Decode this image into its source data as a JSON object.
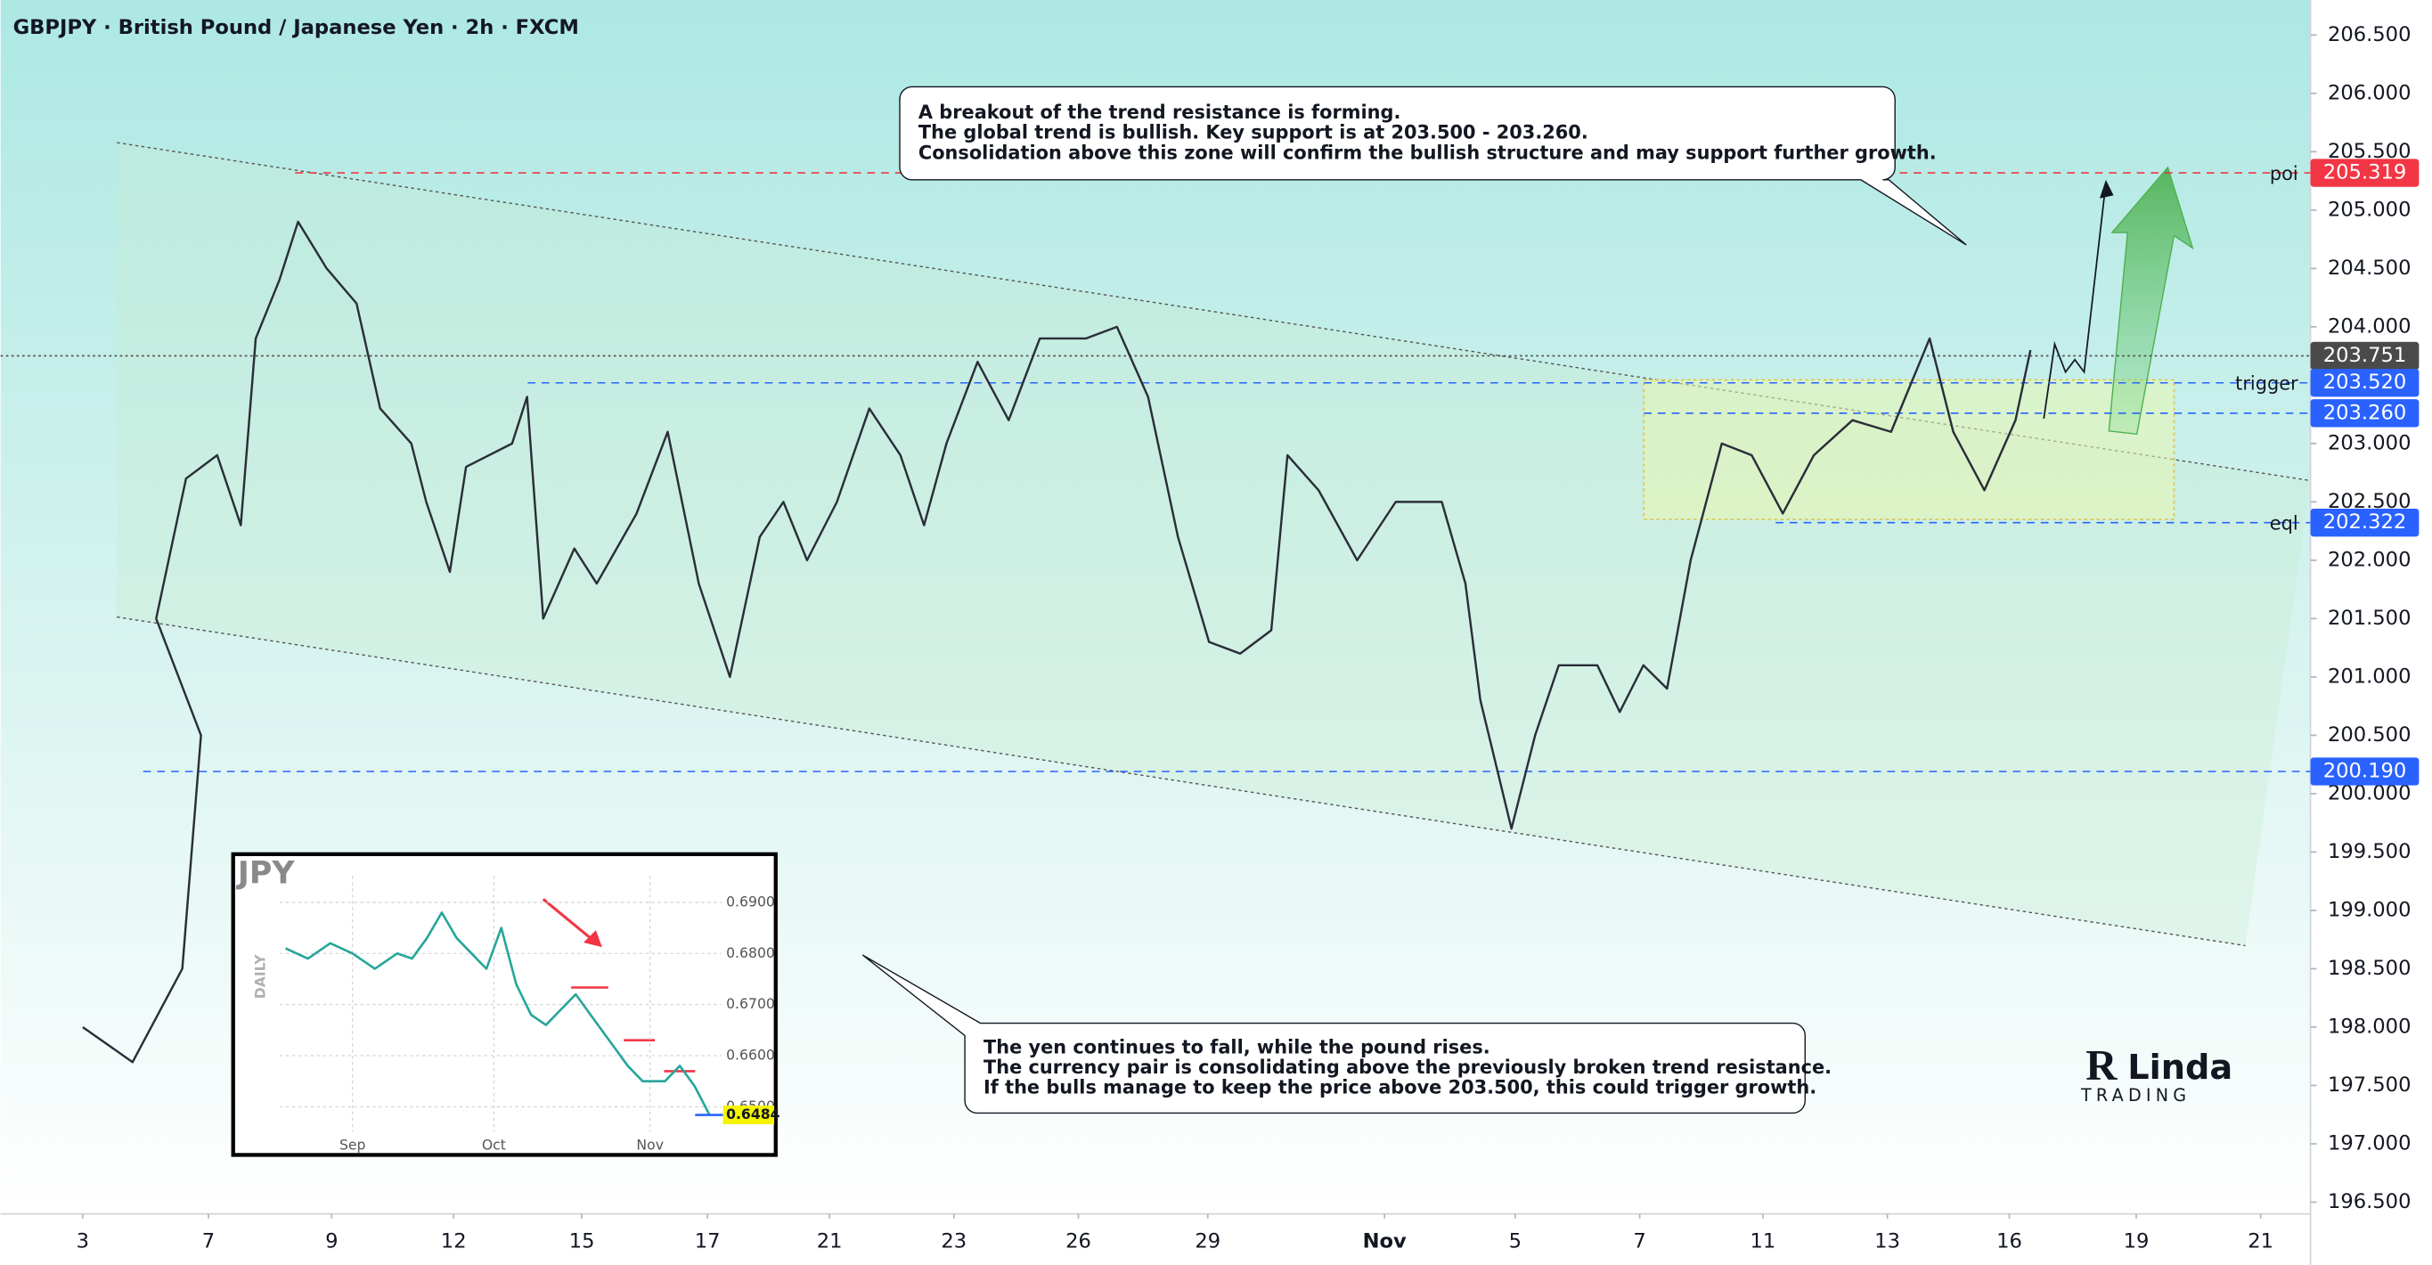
{
  "chart_data": {
    "type": "line",
    "title": "GBPJPY · British Pound / Japanese Yen · 2h · FXCM",
    "color": "#2a2e39",
    "x": [
      0,
      0.4,
      0.8,
      0.95,
      0.59,
      0.83,
      1.08,
      1.27,
      1.39,
      1.58,
      1.73,
      1.96,
      2.2,
      2.39,
      2.64,
      2.76,
      2.95,
      3.08,
      3.45,
      3.57,
      3.7,
      3.95,
      4.13,
      4.45,
      4.7,
      4.95,
      5.2,
      5.44,
      5.63,
      5.82,
      6.06,
      6.32,
      6.57,
      6.76,
      6.94,
      7.19,
      7.44,
      7.69,
      8.06,
      8.31,
      8.56,
      8.8,
      9.05,
      9.3,
      9.55,
      9.68,
      9.93,
      10.24,
      10.55,
      10.92,
      11.11,
      11.23,
      11.48,
      11.67,
      11.86,
      12.17,
      12.35,
      12.54,
      12.73,
      12.92,
      13.17,
      13.41,
      13.66,
      13.91,
      14.22,
      14.53,
      14.84,
      15.03,
      15.28,
      15.53,
      15.65
    ],
    "values": [
      198.0,
      197.7,
      198.5,
      200.5,
      201.5,
      202.7,
      202.9,
      202.3,
      203.9,
      204.4,
      204.9,
      204.5,
      204.2,
      203.3,
      203.0,
      202.5,
      201.9,
      202.8,
      203.0,
      203.4,
      201.5,
      202.1,
      201.8,
      202.4,
      203.1,
      201.8,
      201.0,
      202.2,
      202.5,
      202.0,
      202.5,
      203.3,
      202.9,
      202.3,
      203.0,
      203.7,
      203.2,
      203.9,
      203.9,
      204.0,
      203.4,
      202.2,
      201.3,
      201.2,
      201.4,
      202.9,
      202.6,
      202.0,
      202.5,
      202.5,
      201.8,
      200.8,
      199.7,
      200.5,
      201.1,
      201.1,
      200.7,
      201.1,
      200.9,
      202.0,
      203.0,
      202.9,
      202.4,
      202.9,
      203.2,
      203.1,
      203.9,
      203.1,
      202.6,
      203.2,
      203.8
    ],
    "xlim": [
      -0.66,
      17.9
    ],
    "xticks": [
      {
        "value": 0,
        "label": "3"
      },
      {
        "value": 1.01,
        "label": "7"
      },
      {
        "value": 2.0,
        "label": "9"
      },
      {
        "value": 2.98,
        "label": "12"
      },
      {
        "value": 4.01,
        "label": "15"
      },
      {
        "value": 5.02,
        "label": "17"
      },
      {
        "value": 6.0,
        "label": "21"
      },
      {
        "value": 7.0,
        "label": "23"
      },
      {
        "value": 8.0,
        "label": "26"
      },
      {
        "value": 9.04,
        "label": "29"
      },
      {
        "value": 10.46,
        "label": "Nov"
      },
      {
        "value": 11.51,
        "label": "5"
      },
      {
        "value": 12.51,
        "label": "7"
      },
      {
        "value": 13.5,
        "label": "11"
      },
      {
        "value": 14.5,
        "label": "13"
      },
      {
        "value": 15.48,
        "label": "16"
      },
      {
        "value": 16.5,
        "label": "19"
      },
      {
        "value": 17.5,
        "label": "21"
      }
    ],
    "ylim": [
      196.4,
      206.8
    ],
    "yticks": [
      {
        "value": 196.5,
        "label": "196.500"
      },
      {
        "value": 197,
        "label": "197.000"
      },
      {
        "value": 197.5,
        "label": "197.500"
      },
      {
        "value": 198,
        "label": "198.000"
      },
      {
        "value": 198.5,
        "label": "198.500"
      },
      {
        "value": 199,
        "label": "199.000"
      },
      {
        "value": 199.5,
        "label": "199.500"
      },
      {
        "value": 200,
        "label": "200.000"
      },
      {
        "value": 200.5,
        "label": "200.500"
      },
      {
        "value": 201,
        "label": "201.000"
      },
      {
        "value": 201.5,
        "label": "201.500"
      },
      {
        "value": 202,
        "label": "202.000"
      },
      {
        "value": 202.5,
        "label": "202.500"
      },
      {
        "value": 203,
        "label": "203.000"
      },
      {
        "value": 203.5,
        "label": "203.500"
      },
      {
        "value": 204,
        "label": "204.000"
      },
      {
        "value": 204.5,
        "label": "204.500"
      },
      {
        "value": 205,
        "label": "205.000"
      },
      {
        "value": 205.5,
        "label": "205.500"
      },
      {
        "value": 206,
        "label": "206.000"
      },
      {
        "value": 206.5,
        "label": "206.500"
      }
    ],
    "levels": [
      {
        "value": 205.319,
        "label": "205.319",
        "name": "poi",
        "color": "#f23645"
      },
      {
        "value": 203.751,
        "label": "203.751",
        "color": "#4a4a4a"
      },
      {
        "value": 203.52,
        "label": "203.520",
        "name": "trigger",
        "color": "#2962ff"
      },
      {
        "value": 203.26,
        "label": "203.260",
        "color": "#2962ff"
      },
      {
        "value": 202.322,
        "label": "202.322",
        "name": "eql",
        "color": "#2962ff"
      },
      {
        "value": 200.19,
        "label": "200.190",
        "color": "#2962ff"
      }
    ],
    "annotations": [
      {
        "lines": [
          "A breakout of the trend resistance is forming.",
          "The global trend is bullish. Key support is at 203.500 - 203.260.",
          "Consolidation above this zone will confirm the bullish structure and may support further growth."
        ]
      },
      {
        "lines": [
          "The yen continues to fall, while the pound rises.",
          "The currency pair is consolidating above the previously broken trend resistance.",
          "If the bulls manage to keep the price above 203.500, this could trigger growth."
        ]
      }
    ],
    "logo": {
      "name": "Linda",
      "sub": "TRADING"
    },
    "inset": {
      "type": "line",
      "title": "JPY",
      "axis_label": "DAILY",
      "color": "#26a69a",
      "x": [
        -0.45,
        -0.3,
        -0.15,
        0,
        0.15,
        0.3,
        0.4,
        0.5,
        0.6,
        0.7,
        0.8,
        0.9,
        1.0,
        1.1,
        1.2,
        1.3,
        1.4,
        1.5,
        1.6,
        1.75,
        1.85,
        1.95,
        2.1,
        2.2,
        2.3,
        2.4
      ],
      "values": [
        0.681,
        0.679,
        0.682,
        0.68,
        0.677,
        0.68,
        0.679,
        0.683,
        0.688,
        0.683,
        0.68,
        0.677,
        0.685,
        0.674,
        0.668,
        0.666,
        0.669,
        0.672,
        0.668,
        0.662,
        0.658,
        0.655,
        0.655,
        0.658,
        0.654,
        0.6484
      ],
      "last": {
        "value": 0.6484,
        "label": "0.6484"
      },
      "xlim": [
        -0.49,
        2.48
      ],
      "xticks": [
        {
          "value": 0,
          "label": "Sep"
        },
        {
          "value": 0.95,
          "label": "Oct"
        },
        {
          "value": 2.0,
          "label": "Nov"
        }
      ],
      "ylim": [
        0.6436,
        0.6967
      ],
      "yticks": [
        {
          "value": 0.65,
          "label": "0.6500"
        },
        {
          "value": 0.66,
          "label": "0.6600"
        },
        {
          "value": 0.67,
          "label": "0.6700"
        },
        {
          "value": 0.68,
          "label": "0.6800"
        },
        {
          "value": 0.69,
          "label": "0.6900"
        }
      ]
    }
  }
}
